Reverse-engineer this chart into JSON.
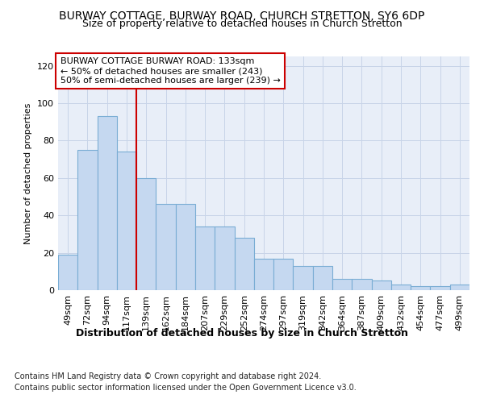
{
  "title": "BURWAY COTTAGE, BURWAY ROAD, CHURCH STRETTON, SY6 6DP",
  "subtitle": "Size of property relative to detached houses in Church Stretton",
  "xlabel": "Distribution of detached houses by size in Church Stretton",
  "ylabel": "Number of detached properties",
  "categories": [
    "49sqm",
    "72sqm",
    "94sqm",
    "117sqm",
    "139sqm",
    "162sqm",
    "184sqm",
    "207sqm",
    "229sqm",
    "252sqm",
    "274sqm",
    "297sqm",
    "319sqm",
    "342sqm",
    "364sqm",
    "387sqm",
    "409sqm",
    "432sqm",
    "454sqm",
    "477sqm",
    "499sqm"
  ],
  "values": [
    19,
    75,
    93,
    74,
    60,
    46,
    46,
    34,
    34,
    28,
    17,
    17,
    13,
    13,
    6,
    6,
    5,
    3,
    2,
    2,
    3
  ],
  "bar_color": "#c5d8f0",
  "bar_edge_color": "#7aadd4",
  "annotation_line_color": "#cc0000",
  "annotation_box_edge_color": "#cc0000",
  "annotation_box_text": "BURWAY COTTAGE BURWAY ROAD: 133sqm\n← 50% of detached houses are smaller (243)\n50% of semi-detached houses are larger (239) →",
  "ylim": [
    0,
    125
  ],
  "yticks": [
    0,
    20,
    40,
    60,
    80,
    100,
    120
  ],
  "grid_color": "#c8d4e8",
  "background_color": "#e8eef8",
  "footer_line1": "Contains HM Land Registry data © Crown copyright and database right 2024.",
  "footer_line2": "Contains public sector information licensed under the Open Government Licence v3.0.",
  "title_fontsize": 10,
  "subtitle_fontsize": 9,
  "xlabel_fontsize": 9,
  "ylabel_fontsize": 8,
  "tick_fontsize": 8,
  "annotation_fontsize": 8,
  "footer_fontsize": 7
}
